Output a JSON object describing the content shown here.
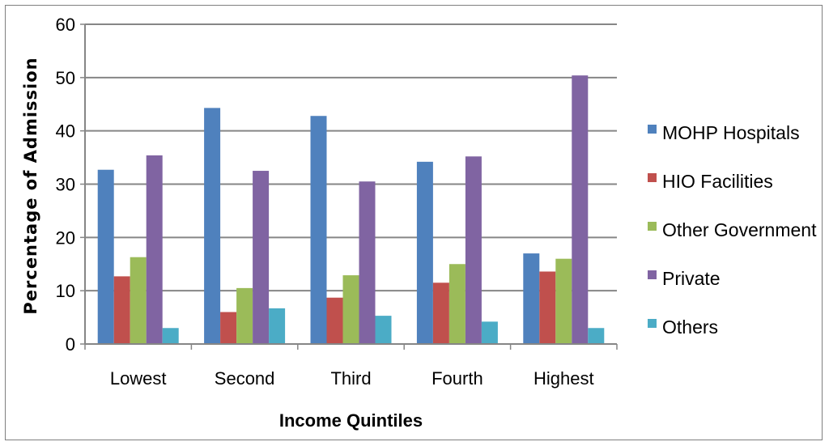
{
  "chart_data": {
    "type": "bar",
    "title": "",
    "xlabel": "Income Quintiles",
    "ylabel": "Percentage of Admission",
    "ylim": [
      0,
      60
    ],
    "yticks": [
      0,
      10,
      20,
      30,
      40,
      50,
      60
    ],
    "grid": true,
    "legend_position": "right",
    "categories": [
      "Lowest",
      "Second",
      "Third",
      "Fourth",
      "Highest"
    ],
    "series": [
      {
        "name": "MOHP Hospitals",
        "color": "#4f81bd",
        "values": [
          32.7,
          44.3,
          42.8,
          34.2,
          17.0
        ]
      },
      {
        "name": "HIO Facilities",
        "color": "#c0504d",
        "values": [
          12.7,
          6.0,
          8.7,
          11.5,
          13.6
        ]
      },
      {
        "name": "Other Government",
        "color": "#9bbb59",
        "values": [
          16.3,
          10.5,
          12.9,
          15.0,
          16.0
        ]
      },
      {
        "name": "Private",
        "color": "#8064a2",
        "values": [
          35.4,
          32.5,
          30.5,
          35.2,
          50.4
        ]
      },
      {
        "name": "Others",
        "color": "#4bacc6",
        "values": [
          3.0,
          6.7,
          5.3,
          4.2,
          3.0
        ]
      }
    ]
  }
}
